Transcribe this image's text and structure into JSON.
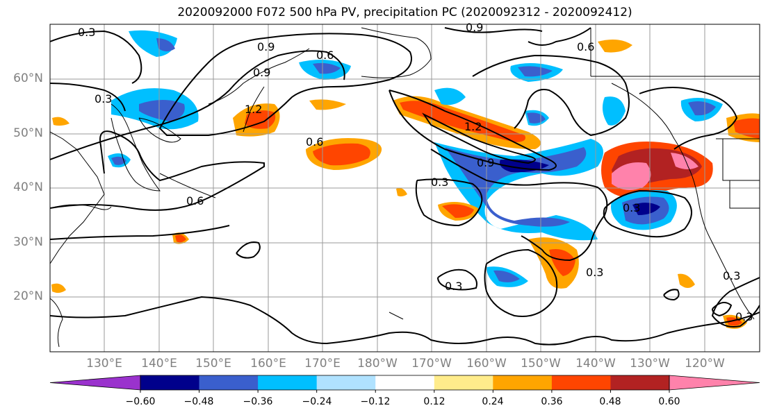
{
  "title": "2020092000 F072 500 hPa PV, precipitation PC (2020092312 - 2020092412)",
  "axes": {
    "lat_labels": [
      "60°N",
      "50°N",
      "40°N",
      "30°N",
      "20°N"
    ],
    "lon_labels": [
      "130°E",
      "140°E",
      "150°E",
      "160°E",
      "170°E",
      "180°W",
      "170°W",
      "160°W",
      "150°W",
      "140°W",
      "130°W",
      "120°W"
    ],
    "lat_range": [
      10,
      70
    ],
    "lon_range": [
      120,
      250
    ]
  },
  "contour_labels": [
    "0.3",
    "0.3",
    "0.3",
    "0.3",
    "0.3",
    "0.3",
    "0.3",
    "0.3",
    "0.6",
    "0.6",
    "0.6",
    "0.6",
    "0.9",
    "0.9",
    "0.9",
    "1.2",
    "1.2",
    "0.9"
  ],
  "colorbar": {
    "tick_labels": [
      "−0.60",
      "−0.48",
      "−0.36",
      "−0.24",
      "−0.12",
      "0.12",
      "0.24",
      "0.36",
      "0.48",
      "0.60"
    ],
    "colors": [
      "#9a32cd",
      "#00008b",
      "#3a5fcd",
      "#00bfff",
      "#b0e2ff",
      "#ffffff",
      "#ffec8b",
      "#ffa500",
      "#ff4500",
      "#b22222",
      "#ff82ab"
    ],
    "extend": "both"
  },
  "colors": {
    "grid": "#9a9a9a",
    "contour": "#000000",
    "coast": "#000000"
  }
}
